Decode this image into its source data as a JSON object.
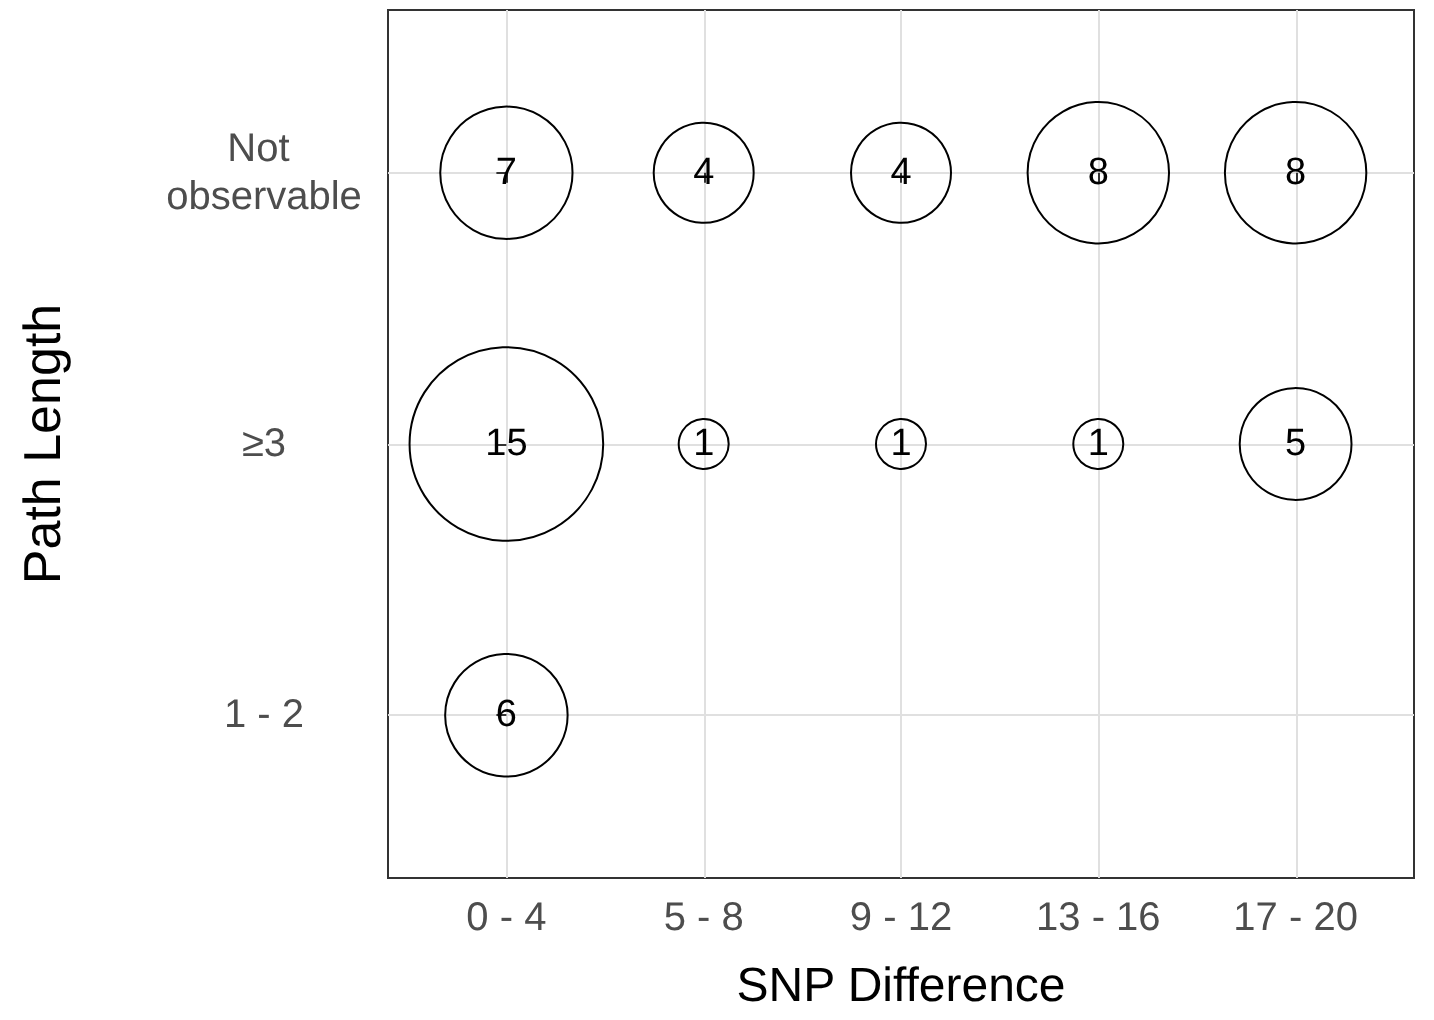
{
  "chart_data": {
    "type": "heatmap",
    "xlabel": "SNP Difference",
    "ylabel": "Path Length",
    "categories": [
      "0 - 4",
      "5 - 8",
      "9 - 12",
      "13 - 16",
      "17 - 20"
    ],
    "y_categories": [
      "Not observable",
      "≥3",
      "1 - 2"
    ],
    "cells": [
      [
        7,
        4,
        4,
        8,
        8
      ],
      [
        15,
        1,
        1,
        1,
        5
      ],
      [
        6,
        null,
        null,
        null,
        null
      ]
    ],
    "data_labels": true,
    "grid": true
  }
}
